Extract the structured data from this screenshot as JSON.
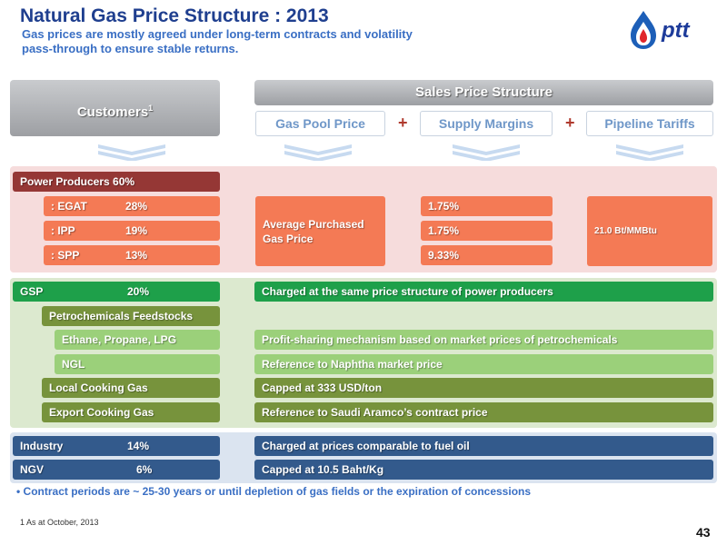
{
  "header": {
    "title": "Natural Gas Price Structure : 2013",
    "subtitle": "Gas prices are mostly agreed under long-term contracts and volatility pass-through to ensure stable returns."
  },
  "logo": {
    "text": "ptt",
    "icon": "ptt-flame-logo",
    "color": "#1d3b9a"
  },
  "columns": {
    "customers": "Customers",
    "customers_note": "1",
    "sales_price_structure": "Sales Price Structure",
    "components": [
      "Gas Pool Price",
      "Supply Margins",
      "Pipeline Tariffs"
    ],
    "plus": "+"
  },
  "power": {
    "header": "Power Producers 60%",
    "rows": [
      {
        "label": ": EGAT",
        "pct": "28%",
        "margin": "1.75%"
      },
      {
        "label": ": IPP",
        "pct": "19%",
        "margin": "1.75%"
      },
      {
        "label": ": SPP",
        "pct": "13%",
        "margin": "9.33%"
      }
    ],
    "pool_price": "Average Purchased Gas Price",
    "tariff": "21.0 Bt/MMBtu"
  },
  "gsp": {
    "label": "GSP",
    "pct": "20%",
    "desc": "Charged at the same price structure of power producers",
    "petrochem": "Petrochemicals Feedstocks",
    "rows": [
      {
        "label": "Ethane, Propane, LPG",
        "desc": "Profit-sharing mechanism based on market prices of petrochemicals"
      },
      {
        "label": "NGL",
        "desc": "Reference to Naphtha market price"
      },
      {
        "label": "Local Cooking Gas",
        "desc": "Capped at 333 USD/ton"
      },
      {
        "label": "Export Cooking Gas",
        "desc": "Reference to Saudi Aramco’s contract price"
      }
    ]
  },
  "industry": {
    "label": "Industry",
    "pct": "14%",
    "desc": "Charged at prices comparable to fuel oil"
  },
  "ngv": {
    "label": "NGV",
    "pct": "6%",
    "desc": "Capped at 10.5 Baht/Kg"
  },
  "bullet": "Contract periods are ~ 25-30 years or until depletion of gas fields or the expiration of concessions",
  "footnote": "1  As at October, 2013",
  "page_number": "43",
  "colors": {
    "title": "#1f3f8f",
    "power_header": "#953735",
    "power_rows": "#f47a55",
    "gsp": "#1ea04a",
    "feedstock": "#77933c",
    "feedstock_light": "#9bd07a",
    "industry": "#335a8c"
  }
}
